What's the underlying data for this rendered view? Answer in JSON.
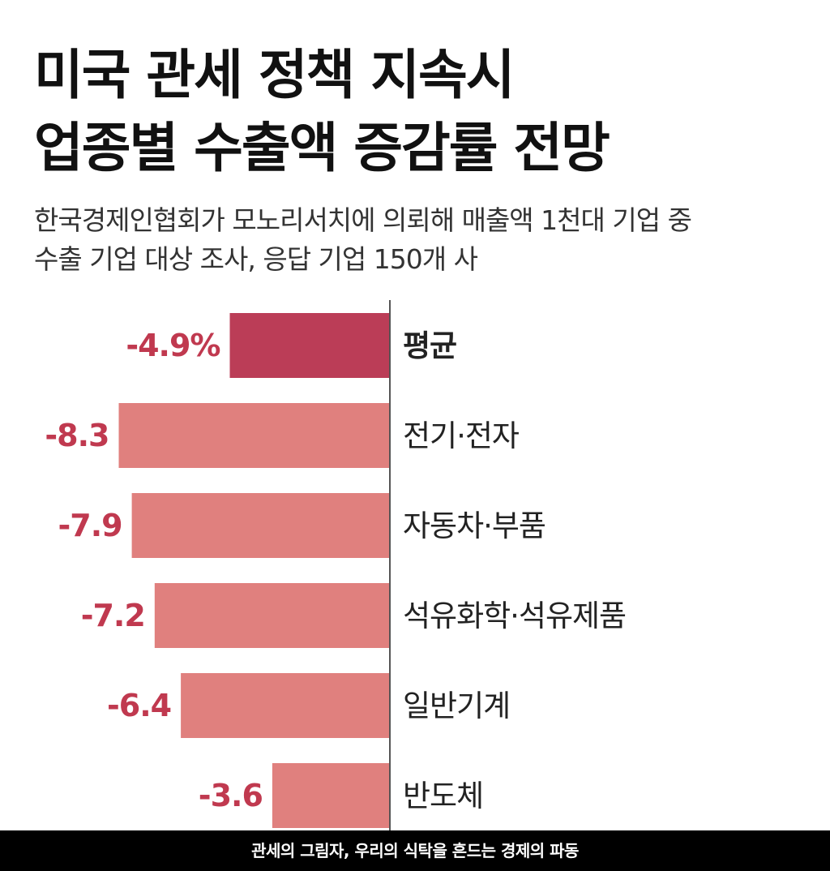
{
  "header": {
    "title_lines": [
      "미국 관세 정책 지속시",
      "업종별 수출액 증감률 전망"
    ],
    "subtitle_lines": [
      "한국경제인협회가 모노리서치에 의뢰해 매출액 1천대 기업 중",
      "수출 기업 대상 조사, 응답 기업 150개 사"
    ]
  },
  "chart_data": {
    "type": "bar",
    "orientation": "horizontal",
    "title": "미국 관세 정책 지속시 업종별 수출액 증감률 전망",
    "unit": "%",
    "categories": [
      "평균",
      "전기·전자",
      "자동차·부품",
      "석유화학·석유제품",
      "일반기계",
      "반도체"
    ],
    "values": [
      -4.9,
      -8.3,
      -7.9,
      -7.2,
      -6.4,
      -3.6
    ],
    "value_labels": [
      "-4.9%",
      "-8.3",
      "-7.9",
      "-7.2",
      "-6.4",
      "-3.6"
    ],
    "highlight_index": 0,
    "xlim": [
      -10,
      0
    ],
    "grid": false,
    "legend": "none",
    "colors": {
      "highlight": "#bb3d57",
      "bar": "#e0807e",
      "label": "#c0394f",
      "category": "#222222",
      "axis": "#555555"
    }
  },
  "footer": {
    "caption": "관세의 그림자, 우리의 식탁을 흔드는 경제의 파동"
  }
}
